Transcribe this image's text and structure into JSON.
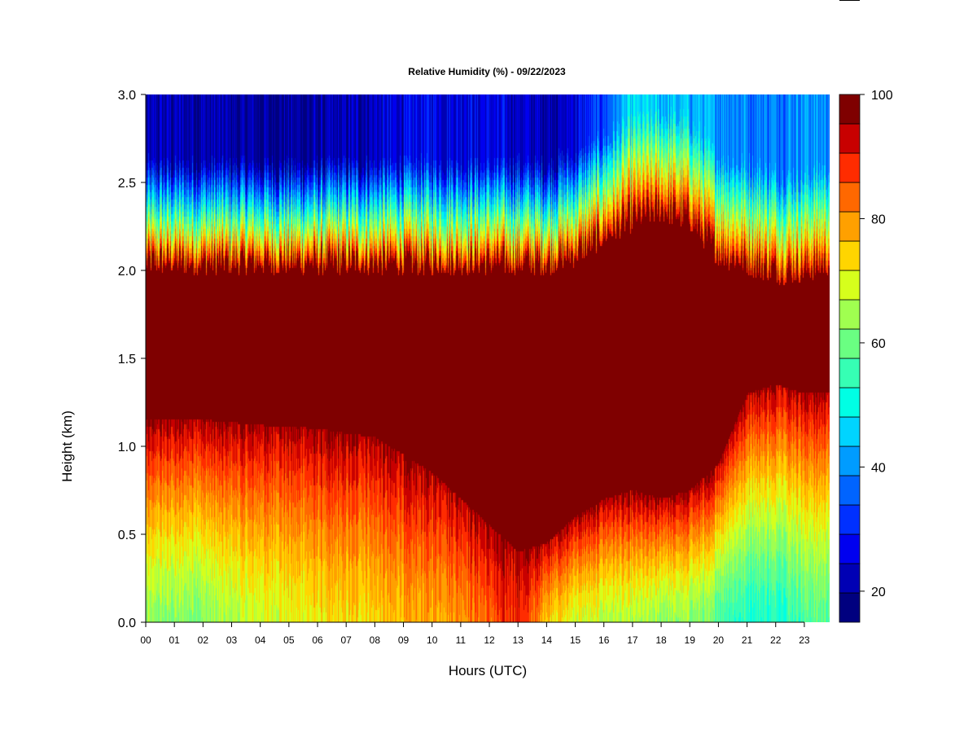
{
  "chart_data": {
    "type": "heatmap",
    "title": "Relative Humidity (%) - 09/22/2023",
    "xlabel": "Hours (UTC)",
    "ylabel": "Height (km)",
    "x_ticks": [
      "00",
      "01",
      "02",
      "03",
      "04",
      "05",
      "06",
      "07",
      "08",
      "09",
      "10",
      "11",
      "12",
      "13",
      "14",
      "15",
      "16",
      "17",
      "18",
      "19",
      "20",
      "21",
      "22",
      "23"
    ],
    "x_range": [
      0,
      24
    ],
    "y_ticks": [
      "0.0",
      "0.5",
      "1.0",
      "1.5",
      "2.0",
      "2.5",
      "3.0"
    ],
    "y_tick_values": [
      0.0,
      0.5,
      1.0,
      1.5,
      2.0,
      2.5,
      3.0
    ],
    "ylim": [
      0,
      3.0
    ],
    "colorbar": {
      "ticks": [
        "20",
        "40",
        "60",
        "80",
        "100"
      ],
      "tick_values": [
        20,
        40,
        60,
        80,
        100
      ],
      "range": [
        15,
        100
      ],
      "levels": [
        15,
        20,
        25,
        30,
        35,
        40,
        45,
        50,
        55,
        60,
        65,
        70,
        75,
        80,
        85,
        90,
        95,
        100
      ],
      "colors": [
        "#00007f",
        "#0000b4",
        "#0000ef",
        "#0030ff",
        "#0064ff",
        "#009cff",
        "#00d4ff",
        "#00ffe4",
        "#36ffb4",
        "#6aff82",
        "#a0ff50",
        "#d6ff1c",
        "#ffd500",
        "#ffa000",
        "#ff6800",
        "#ff2c00",
        "#c80000",
        "#7f0000"
      ]
    },
    "layer_profile": {
      "hours": [
        0,
        2,
        4,
        6,
        8,
        10,
        12,
        13,
        14,
        15,
        16,
        17,
        18,
        19,
        20,
        21,
        22,
        23,
        24
      ],
      "saturated_bottom_km": [
        1.15,
        1.15,
        1.12,
        1.1,
        1.05,
        0.85,
        0.55,
        0.4,
        0.45,
        0.6,
        0.7,
        0.75,
        0.7,
        0.75,
        0.9,
        1.3,
        1.35,
        1.3,
        1.3
      ],
      "saturated_top_km": [
        2.05,
        2.05,
        2.05,
        2.05,
        2.05,
        2.05,
        2.05,
        2.05,
        2.05,
        2.1,
        2.2,
        2.3,
        2.35,
        2.3,
        2.1,
        2.05,
        2.0,
        2.0,
        2.05
      ],
      "dry_aloft_rh": [
        22,
        22,
        20,
        20,
        24,
        28,
        26,
        24,
        22,
        26,
        35,
        48,
        45,
        45,
        42,
        40,
        40,
        42,
        42
      ],
      "surface_rh": [
        65,
        65,
        72,
        75,
        78,
        82,
        88,
        95,
        80,
        72,
        70,
        68,
        66,
        66,
        60,
        55,
        55,
        60,
        62
      ]
    }
  }
}
